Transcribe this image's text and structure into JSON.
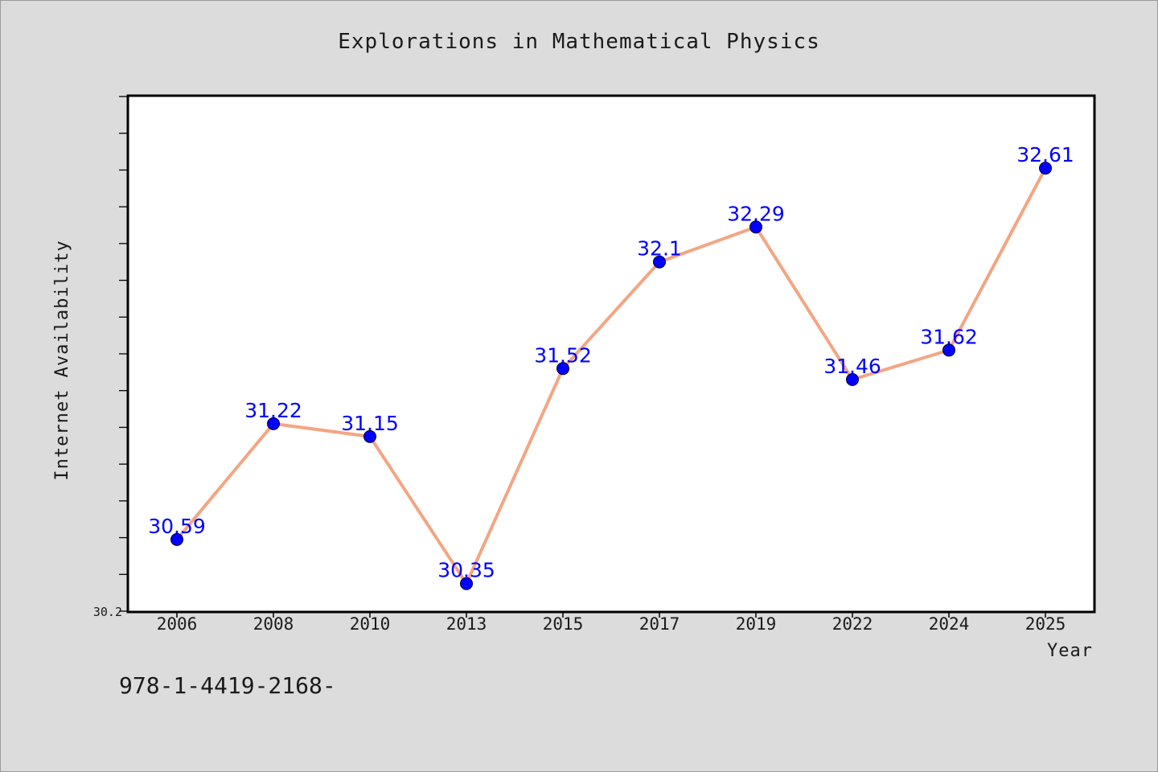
{
  "chart_data": {
    "type": "line",
    "title": "Explorations in Mathematical Physics",
    "xlabel": "Year",
    "ylabel": "Internet Availability",
    "categories": [
      "2006",
      "2008",
      "2010",
      "2013",
      "2015",
      "2017",
      "2019",
      "2022",
      "2024",
      "2025"
    ],
    "series": [
      {
        "values": [
          30.59,
          31.22,
          31.15,
          30.35,
          31.52,
          32.1,
          32.29,
          31.46,
          31.62,
          32.61
        ],
        "labels": [
          "30.59",
          "31.22",
          "31.15",
          "30.35",
          "31.52",
          "32.1",
          "32.29",
          "31.46",
          "31.62",
          "32.61"
        ],
        "line_color": "#f4a582",
        "marker_color": "#0000ff"
      }
    ],
    "ylim": [
      30.2,
      33.0
    ],
    "ytick_min_label": "30.2",
    "legend": "none",
    "grid": false
  },
  "footer_text": "978-1-4419-2168-",
  "colors": {
    "background": "#dcdcdc",
    "plot_background": "#ffffff",
    "label_color": "#0000ff"
  }
}
